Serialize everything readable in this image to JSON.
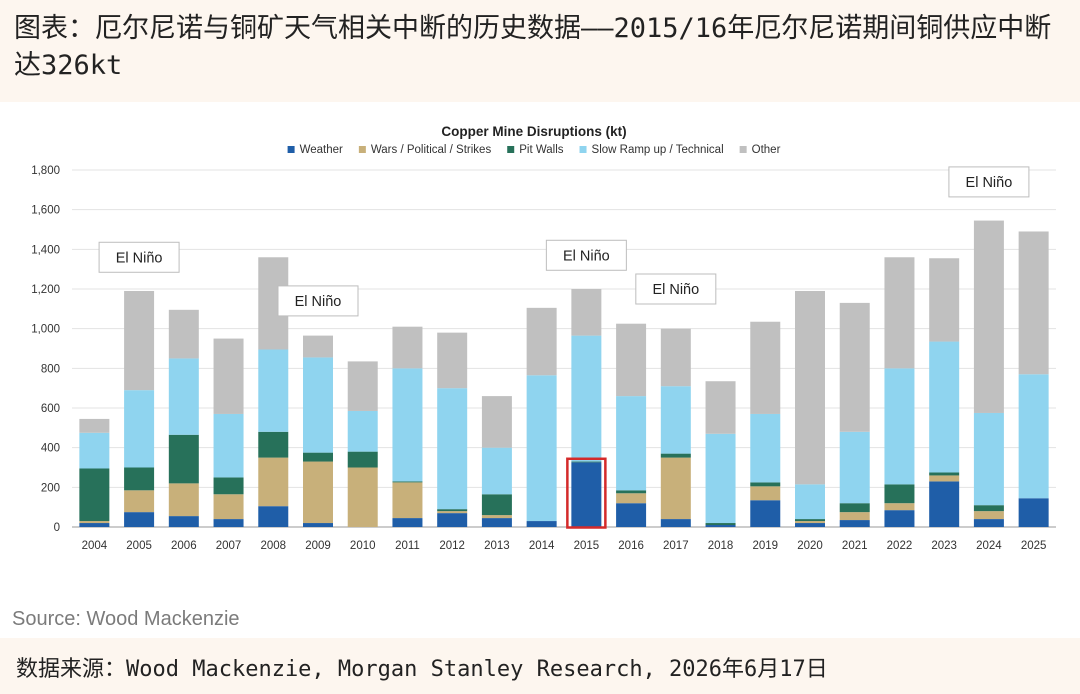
{
  "header": {
    "title": "图表：厄尔尼诺与铜矿天气相关中断的历史数据——2015/16年厄尔尼诺期间铜供应中断达326kt"
  },
  "chart_data": {
    "type": "bar",
    "stacked": true,
    "title": "Copper Mine Disruptions (kt)",
    "xlabel": "",
    "ylabel": "",
    "ylim": [
      0,
      1800
    ],
    "yticks": [
      "0",
      "200",
      "400",
      "600",
      "800",
      "1,000",
      "1,200",
      "1,400",
      "1,600",
      "1,800"
    ],
    "grid": true,
    "legend_position": "top",
    "categories": [
      "2004",
      "2005",
      "2006",
      "2007",
      "2008",
      "2009",
      "2010",
      "2011",
      "2012",
      "2013",
      "2014",
      "2015",
      "2016",
      "2017",
      "2018",
      "2019",
      "2020",
      "2021",
      "2022",
      "2023",
      "2024",
      "2025"
    ],
    "series": [
      {
        "name": "Weather",
        "color": "#1f5ea8",
        "values": [
          20,
          75,
          55,
          40,
          105,
          20,
          0,
          45,
          70,
          45,
          30,
          326,
          120,
          40,
          10,
          135,
          20,
          35,
          85,
          230,
          40,
          145
        ]
      },
      {
        "name": "Wars / Political / Strikes",
        "color": "#c8b07a",
        "values": [
          10,
          110,
          165,
          125,
          245,
          310,
          300,
          180,
          10,
          15,
          0,
          0,
          50,
          310,
          0,
          70,
          10,
          40,
          35,
          30,
          40,
          0
        ]
      },
      {
        "name": "Pit Walls",
        "color": "#27715a",
        "values": [
          265,
          115,
          245,
          85,
          130,
          45,
          80,
          5,
          10,
          105,
          0,
          4,
          15,
          20,
          10,
          20,
          10,
          45,
          95,
          15,
          30,
          0
        ]
      },
      {
        "name": "Slow Ramp up / Technical",
        "color": "#8fd4ef",
        "values": [
          180,
          390,
          385,
          320,
          415,
          480,
          205,
          570,
          610,
          235,
          735,
          635,
          475,
          340,
          450,
          345,
          175,
          360,
          585,
          660,
          465,
          625
        ]
      },
      {
        "name": "Other",
        "color": "#c0c0c0",
        "values": [
          70,
          500,
          245,
          380,
          465,
          110,
          250,
          210,
          280,
          260,
          340,
          235,
          365,
          290,
          265,
          465,
          975,
          650,
          560,
          420,
          970,
          720
        ]
      }
    ],
    "annotations": [
      {
        "text": "El Niño",
        "x": "2005",
        "y": 1360
      },
      {
        "text": "El Niño",
        "x": "2009",
        "y": 1140
      },
      {
        "text": "El Niño",
        "x": "2015",
        "y": 1370
      },
      {
        "text": "El Niño",
        "x": "2017",
        "y": 1200
      },
      {
        "text": "El Niño",
        "x": "2024",
        "y": 1740
      }
    ],
    "highlight": {
      "category": "2015",
      "series": "Weather",
      "color": "#d42a2a"
    },
    "source_note": "Source: Wood Mackenzie"
  },
  "footer": {
    "source": "数据来源：Wood Mackenzie, Morgan Stanley Research, 2026年6月17日"
  }
}
